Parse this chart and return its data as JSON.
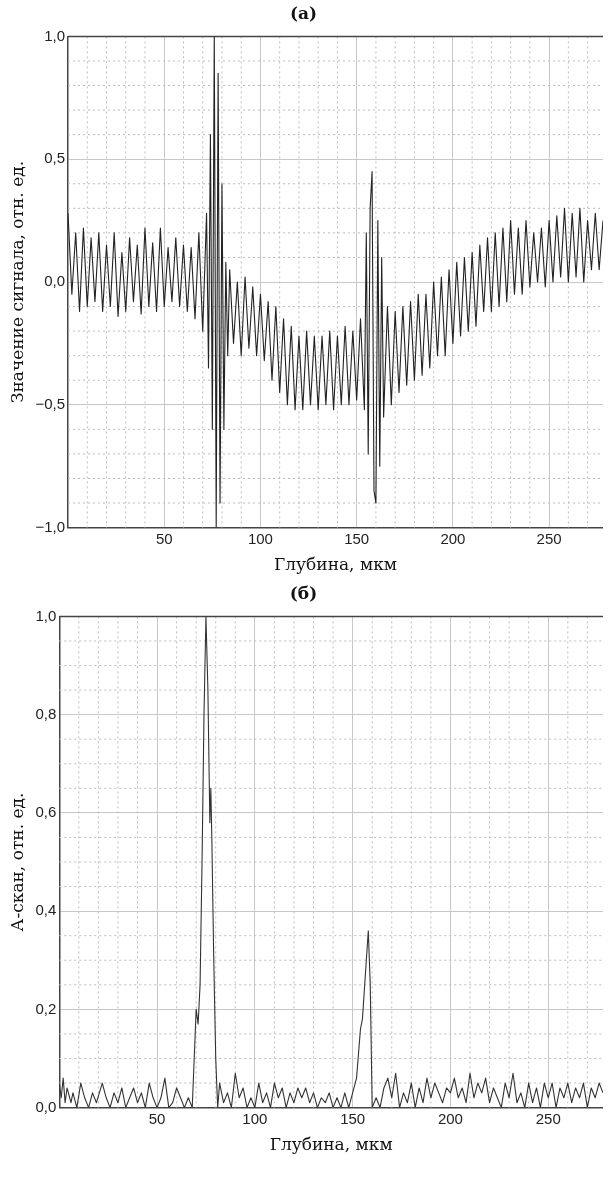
{
  "chart_data": [
    {
      "type": "line",
      "title": "(a)",
      "xlabel": "Глубина, мкм",
      "ylabel": "Значение сигнала, отн. ед.",
      "grid": true,
      "legend": false,
      "marker": "none",
      "line_style": "solid",
      "xlim": [
        0,
        278
      ],
      "ylim": [
        -1,
        1
      ],
      "xticks": [
        {
          "value": 10,
          "label": null
        },
        {
          "value": 20,
          "label": null
        },
        {
          "value": 30,
          "label": null
        },
        {
          "value": 40,
          "label": null
        },
        50,
        {
          "value": 60,
          "label": null
        },
        {
          "value": 70,
          "label": null
        },
        {
          "value": 80,
          "label": null
        },
        {
          "value": 90,
          "label": null
        },
        100,
        {
          "value": 110,
          "label": null
        },
        {
          "value": 120,
          "label": null
        },
        {
          "value": 130,
          "label": null
        },
        {
          "value": 140,
          "label": null
        },
        150,
        {
          "value": 160,
          "label": null
        },
        {
          "value": 170,
          "label": null
        },
        {
          "value": 180,
          "label": null
        },
        {
          "value": 190,
          "label": null
        },
        200,
        {
          "value": 210,
          "label": null
        },
        {
          "value": 220,
          "label": null
        },
        {
          "value": 230,
          "label": null
        },
        {
          "value": 240,
          "label": null
        },
        250,
        {
          "value": 260,
          "label": null
        },
        {
          "value": 270,
          "label": null
        }
      ],
      "yticks": [
        {
          "value": -1,
          "label": "−1,0"
        },
        {
          "value": -0.9,
          "label": null
        },
        {
          "value": -0.8,
          "label": null
        },
        {
          "value": -0.7,
          "label": null
        },
        {
          "value": -0.6,
          "label": null
        },
        {
          "value": -0.5,
          "label": "−0,5"
        },
        {
          "value": -0.4,
          "label": null
        },
        {
          "value": -0.3,
          "label": null
        },
        {
          "value": -0.2,
          "label": null
        },
        {
          "value": -0.1,
          "label": null
        },
        {
          "value": 0,
          "label": "0,0"
        },
        {
          "value": 0.1,
          "label": null
        },
        {
          "value": 0.2,
          "label": null
        },
        {
          "value": 0.3,
          "label": null
        },
        {
          "value": 0.4,
          "label": null
        },
        {
          "value": 0.5,
          "label": "0,5"
        },
        {
          "value": 0.6,
          "label": null
        },
        {
          "value": 0.7,
          "label": null
        },
        {
          "value": 0.8,
          "label": null
        },
        {
          "value": 0.9,
          "label": null
        },
        {
          "value": 1,
          "label": "1,0"
        }
      ],
      "series": [
        {
          "color": "#222222",
          "x": [
            0,
            2,
            4,
            6,
            8,
            10,
            12,
            14,
            16,
            18,
            20,
            22,
            24,
            26,
            28,
            30,
            32,
            34,
            36,
            38,
            40,
            42,
            44,
            46,
            48,
            50,
            52,
            54,
            56,
            58,
            60,
            62,
            64,
            66,
            68,
            70,
            72,
            73,
            74,
            75,
            76,
            77,
            78,
            79,
            80,
            81,
            82,
            83,
            84,
            86,
            88,
            90,
            92,
            94,
            96,
            98,
            100,
            102,
            104,
            106,
            108,
            110,
            112,
            114,
            116,
            118,
            120,
            122,
            124,
            126,
            128,
            130,
            132,
            134,
            136,
            138,
            140,
            142,
            144,
            146,
            148,
            150,
            152,
            154,
            155,
            156,
            157,
            158,
            159,
            160,
            161,
            162,
            163,
            164,
            166,
            168,
            170,
            172,
            174,
            176,
            178,
            180,
            182,
            184,
            186,
            188,
            190,
            192,
            194,
            196,
            198,
            200,
            202,
            204,
            206,
            208,
            210,
            212,
            214,
            216,
            218,
            220,
            222,
            224,
            226,
            228,
            230,
            232,
            234,
            236,
            238,
            240,
            242,
            244,
            246,
            248,
            250,
            252,
            254,
            256,
            258,
            260,
            262,
            264,
            266,
            268,
            270,
            272,
            274,
            276,
            278
          ],
          "values": [
            0.28,
            -0.05,
            0.2,
            -0.12,
            0.22,
            -0.1,
            0.18,
            -0.08,
            0.2,
            -0.12,
            0.15,
            -0.1,
            0.2,
            -0.14,
            0.12,
            -0.12,
            0.18,
            -0.08,
            0.15,
            -0.13,
            0.22,
            -0.1,
            0.16,
            -0.12,
            0.22,
            -0.1,
            0.14,
            -0.08,
            0.18,
            -0.1,
            0.15,
            -0.12,
            0.14,
            -0.15,
            0.2,
            -0.2,
            0.28,
            -0.35,
            0.6,
            -0.6,
            1.0,
            -1.0,
            0.85,
            -0.9,
            0.4,
            -0.6,
            0.08,
            -0.3,
            0.05,
            -0.25,
            0.0,
            -0.3,
            0.02,
            -0.27,
            -0.02,
            -0.3,
            -0.05,
            -0.32,
            -0.08,
            -0.4,
            -0.1,
            -0.45,
            -0.15,
            -0.5,
            -0.18,
            -0.52,
            -0.22,
            -0.52,
            -0.2,
            -0.5,
            -0.22,
            -0.52,
            -0.22,
            -0.5,
            -0.2,
            -0.52,
            -0.22,
            -0.5,
            -0.18,
            -0.5,
            -0.2,
            -0.48,
            -0.15,
            -0.52,
            0.2,
            -0.7,
            0.3,
            0.45,
            -0.85,
            -0.9,
            0.25,
            -0.75,
            0.1,
            -0.55,
            -0.1,
            -0.5,
            -0.12,
            -0.45,
            -0.1,
            -0.42,
            -0.08,
            -0.4,
            -0.05,
            -0.38,
            -0.05,
            -0.35,
            0.0,
            -0.3,
            0.02,
            -0.3,
            0.05,
            -0.25,
            0.08,
            -0.22,
            0.1,
            -0.2,
            0.12,
            -0.18,
            0.15,
            -0.12,
            0.18,
            -0.12,
            0.2,
            -0.1,
            0.22,
            -0.08,
            0.25,
            -0.05,
            0.22,
            -0.05,
            0.25,
            -0.02,
            0.2,
            0.0,
            0.22,
            -0.02,
            0.25,
            0.0,
            0.27,
            0.02,
            0.3,
            0.0,
            0.28,
            0.02,
            0.3,
            0.0,
            0.25,
            0.05,
            0.28,
            0.05,
            0.25
          ]
        }
      ]
    },
    {
      "type": "line",
      "title": "(б)",
      "xlabel": "Глубина, мкм",
      "ylabel": "А-скан, отн. ед.",
      "grid": true,
      "legend": false,
      "marker": "none",
      "line_style": "solid",
      "xlim": [
        0,
        278
      ],
      "ylim": [
        0,
        1
      ],
      "xticks": [
        {
          "value": 10,
          "label": null
        },
        {
          "value": 20,
          "label": null
        },
        {
          "value": 30,
          "label": null
        },
        {
          "value": 40,
          "label": null
        },
        50,
        {
          "value": 60,
          "label": null
        },
        {
          "value": 70,
          "label": null
        },
        {
          "value": 80,
          "label": null
        },
        {
          "value": 90,
          "label": null
        },
        100,
        {
          "value": 110,
          "label": null
        },
        {
          "value": 120,
          "label": null
        },
        {
          "value": 130,
          "label": null
        },
        {
          "value": 140,
          "label": null
        },
        150,
        {
          "value": 160,
          "label": null
        },
        {
          "value": 170,
          "label": null
        },
        {
          "value": 180,
          "label": null
        },
        {
          "value": 190,
          "label": null
        },
        200,
        {
          "value": 210,
          "label": null
        },
        {
          "value": 220,
          "label": null
        },
        {
          "value": 230,
          "label": null
        },
        {
          "value": 240,
          "label": null
        },
        250,
        {
          "value": 260,
          "label": null
        },
        {
          "value": 270,
          "label": null
        }
      ],
      "yticks": [
        {
          "value": 0,
          "label": "0,0"
        },
        {
          "value": 0.05,
          "label": null
        },
        {
          "value": 0.1,
          "label": null
        },
        {
          "value": 0.15,
          "label": null
        },
        {
          "value": 0.2,
          "label": "0,2"
        },
        {
          "value": 0.25,
          "label": null
        },
        {
          "value": 0.3,
          "label": null
        },
        {
          "value": 0.35,
          "label": null
        },
        {
          "value": 0.4,
          "label": "0,4"
        },
        {
          "value": 0.45,
          "label": null
        },
        {
          "value": 0.5,
          "label": null
        },
        {
          "value": 0.55,
          "label": null
        },
        {
          "value": 0.6,
          "label": "0,6"
        },
        {
          "value": 0.65,
          "label": null
        },
        {
          "value": 0.7,
          "label": null
        },
        {
          "value": 0.75,
          "label": null
        },
        {
          "value": 0.8,
          "label": "0,8"
        },
        {
          "value": 0.85,
          "label": null
        },
        {
          "value": 0.9,
          "label": null
        },
        {
          "value": 0.95,
          "label": null
        },
        {
          "value": 1,
          "label": "1,0"
        }
      ],
      "series": [
        {
          "color": "#333333",
          "x": [
            0,
            1,
            2,
            3,
            4,
            6,
            7,
            9,
            11,
            13,
            15,
            17,
            19,
            22,
            24,
            26,
            28,
            30,
            32,
            34,
            36,
            38,
            40,
            42,
            44,
            46,
            48,
            50,
            52,
            54,
            56,
            58,
            60,
            62,
            64,
            66,
            68,
            70,
            71,
            72,
            73,
            74,
            75,
            76,
            77,
            77.5,
            78,
            79,
            80,
            81,
            82,
            84,
            86,
            88,
            90,
            92,
            94,
            96,
            98,
            100,
            102,
            104,
            106,
            108,
            110,
            112,
            114,
            116,
            118,
            120,
            122,
            124,
            126,
            128,
            130,
            132,
            134,
            136,
            138,
            140,
            142,
            144,
            146,
            148,
            150,
            152,
            154,
            155,
            157,
            158,
            159,
            160,
            162,
            164,
            166,
            168,
            170,
            172,
            174,
            176,
            178,
            180,
            182,
            184,
            186,
            188,
            190,
            192,
            194,
            196,
            198,
            200,
            202,
            204,
            206,
            208,
            210,
            212,
            214,
            216,
            218,
            220,
            222,
            224,
            226,
            228,
            230,
            232,
            234,
            236,
            238,
            240,
            242,
            244,
            246,
            248,
            250,
            252,
            254,
            256,
            258,
            260,
            262,
            264,
            266,
            268,
            270,
            272,
            274,
            276,
            278
          ],
          "values": [
            0.05,
            0.02,
            0.06,
            0.01,
            0.04,
            0.01,
            0.03,
            0.0,
            0.05,
            0.02,
            0.0,
            0.03,
            0.01,
            0.05,
            0.02,
            0.0,
            0.03,
            0.01,
            0.04,
            0.0,
            0.02,
            0.04,
            0.01,
            0.03,
            0.0,
            0.05,
            0.02,
            0.0,
            0.02,
            0.06,
            0.0,
            0.01,
            0.04,
            0.02,
            0.0,
            0.02,
            0.0,
            0.2,
            0.17,
            0.25,
            0.5,
            0.8,
            1.0,
            0.85,
            0.58,
            0.65,
            0.55,
            0.3,
            0.1,
            0.0,
            0.05,
            0.01,
            0.03,
            0.0,
            0.07,
            0.02,
            0.04,
            0.0,
            0.02,
            0.0,
            0.05,
            0.01,
            0.03,
            0.0,
            0.05,
            0.02,
            0.04,
            0.0,
            0.03,
            0.01,
            0.04,
            0.02,
            0.04,
            0.01,
            0.03,
            0.0,
            0.02,
            0.01,
            0.03,
            0.0,
            0.02,
            0.0,
            0.03,
            0.0,
            0.03,
            0.06,
            0.16,
            0.18,
            0.3,
            0.36,
            0.25,
            0.0,
            0.02,
            0.0,
            0.04,
            0.06,
            0.02,
            0.07,
            0.0,
            0.03,
            0.01,
            0.05,
            0.0,
            0.04,
            0.01,
            0.06,
            0.02,
            0.05,
            0.03,
            0.01,
            0.04,
            0.03,
            0.06,
            0.02,
            0.04,
            0.01,
            0.07,
            0.02,
            0.05,
            0.03,
            0.06,
            0.01,
            0.04,
            0.02,
            0.0,
            0.05,
            0.02,
            0.07,
            0.01,
            0.03,
            0.0,
            0.05,
            0.01,
            0.04,
            0.0,
            0.05,
            0.02,
            0.05,
            0.0,
            0.04,
            0.02,
            0.05,
            0.01,
            0.04,
            0.02,
            0.05,
            0.0,
            0.04,
            0.02,
            0.05,
            0.03
          ]
        }
      ]
    }
  ]
}
